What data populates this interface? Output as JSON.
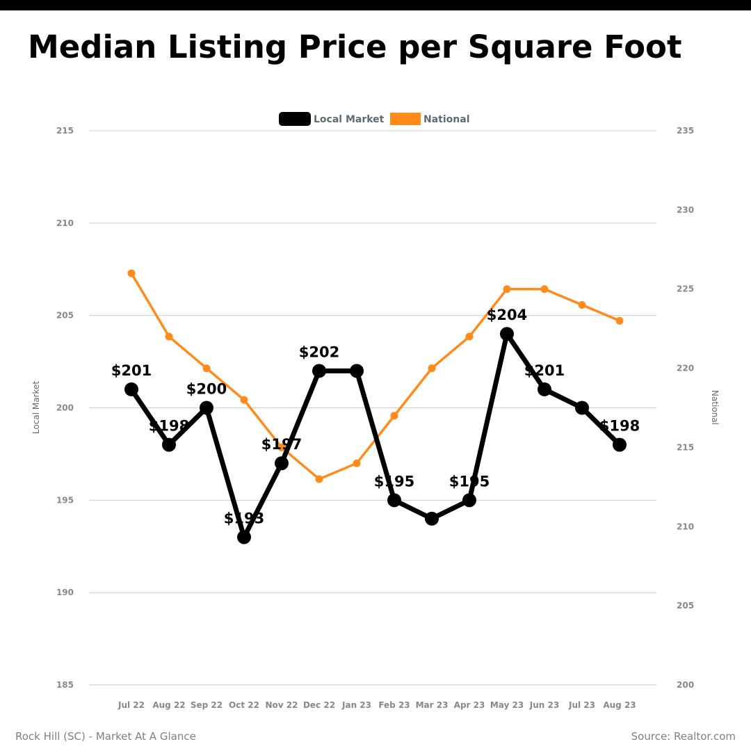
{
  "title": "Median Listing Price per Square Foot",
  "footer": {
    "left": "Rock Hill (SC) - Market At A Glance",
    "right": "Source: Realtor.com"
  },
  "chart_data": {
    "type": "line",
    "categories": [
      "Jul 22",
      "Aug 22",
      "Sep 22",
      "Oct 22",
      "Nov 22",
      "Dec 22",
      "Jan 23",
      "Feb 23",
      "Mar 23",
      "Apr 23",
      "May 23",
      "Jun 23",
      "Jul 23",
      "Aug 23"
    ],
    "series": [
      {
        "name": "Local Market",
        "axis": "left",
        "color": "#000000",
        "values": [
          201,
          198,
          200,
          193,
          197,
          202,
          202,
          195,
          194,
          195,
          204,
          201,
          200,
          198
        ],
        "data_labels": [
          "$201",
          "$198",
          "$200",
          "$193",
          "$197",
          "$202",
          "",
          "$195",
          "",
          "$195",
          "$204",
          "$201",
          "",
          "$198"
        ]
      },
      {
        "name": "National",
        "axis": "right",
        "color": "#ff8c1a",
        "values": [
          226,
          222,
          220,
          218,
          215,
          213,
          214,
          217,
          220,
          222,
          225,
          225,
          224,
          223
        ]
      }
    ],
    "y_left": {
      "label": "Local Market",
      "range": [
        185,
        215
      ],
      "ticks": [
        185,
        190,
        195,
        200,
        205,
        210,
        215
      ]
    },
    "y_right": {
      "label": "National",
      "range": [
        200,
        235
      ],
      "ticks": [
        200,
        205,
        210,
        215,
        220,
        225,
        230,
        235
      ]
    },
    "grid": true,
    "legend_position": "top-center"
  }
}
